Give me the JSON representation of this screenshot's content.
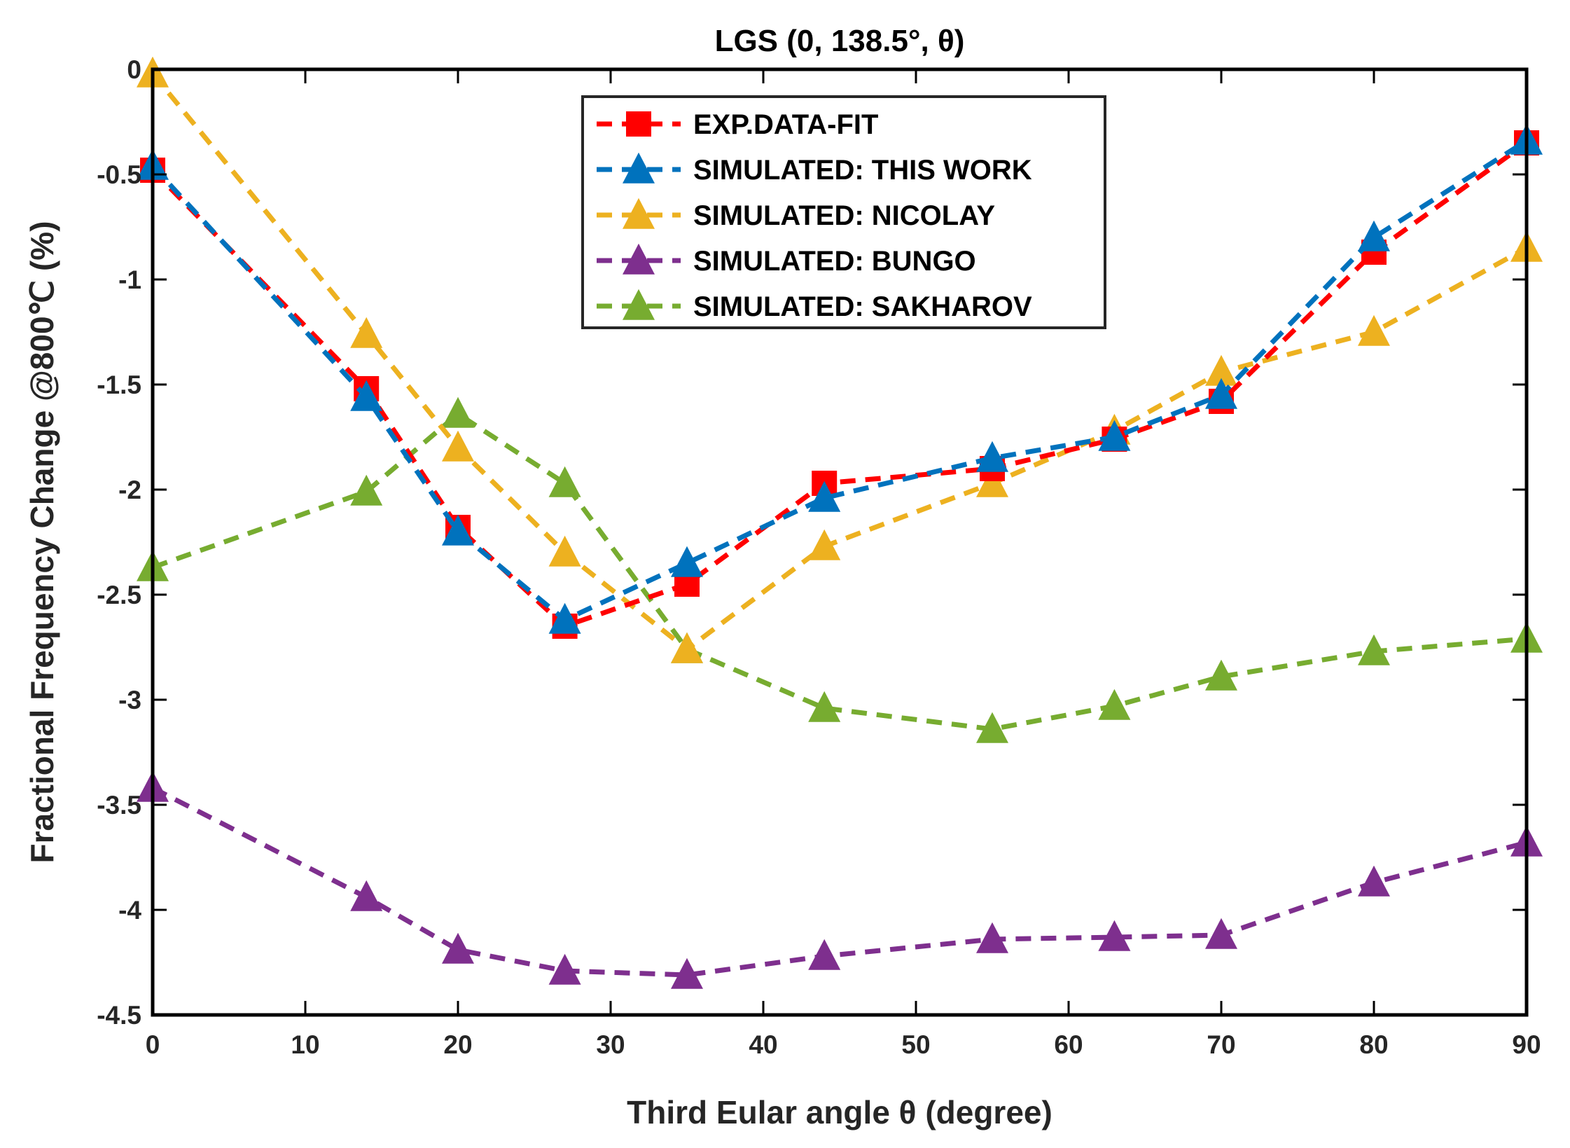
{
  "chart_data": {
    "type": "line",
    "title": "LGS (0, 138.5°, θ)",
    "xlabel": "Third Eular angle θ (degree)",
    "ylabel": "Fractional Frequency Change @800℃ (%)",
    "xlim": [
      0,
      90
    ],
    "ylim": [
      -4.5,
      0
    ],
    "xticks": [
      0,
      10,
      20,
      30,
      40,
      50,
      60,
      70,
      80,
      90
    ],
    "xtick_labels": [
      "0",
      "10",
      "20",
      "30",
      "40",
      "50",
      "60",
      "70",
      "80",
      "90"
    ],
    "yticks": [
      0,
      -0.5,
      -1,
      -1.5,
      -2,
      -2.5,
      -3,
      -3.5,
      -4,
      -4.5
    ],
    "ytick_labels": [
      "0",
      "-0.5",
      "-1",
      "-1.5",
      "-2",
      "-2.5",
      "-3",
      "-3.5",
      "-4",
      "-4.5"
    ],
    "grid": false,
    "legend_position": "top-center",
    "x": [
      0,
      14,
      20,
      27,
      35,
      44,
      55,
      63,
      70,
      80,
      90
    ],
    "series": [
      {
        "name": "EXP.DATA-FIT",
        "marker": "square",
        "color": "#ff0000",
        "values": [
          -0.48,
          -1.52,
          -2.18,
          -2.65,
          -2.45,
          -1.97,
          -1.9,
          -1.76,
          -1.58,
          -0.87,
          -0.35
        ]
      },
      {
        "name": "SIMULATED: THIS WORK",
        "marker": "triangle",
        "color": "#0072bd",
        "values": [
          -0.46,
          -1.56,
          -2.2,
          -2.62,
          -2.35,
          -2.04,
          -1.85,
          -1.75,
          -1.55,
          -0.8,
          -0.34
        ]
      },
      {
        "name": "SIMULATED: NICOLAY",
        "marker": "triangle",
        "color": "#edb120",
        "values": [
          -0.02,
          -1.26,
          -1.8,
          -2.3,
          -2.76,
          -2.27,
          -1.97,
          -1.72,
          -1.44,
          -1.25,
          -0.85
        ]
      },
      {
        "name": "SIMULATED: BUNGO",
        "marker": "triangle",
        "color": "#7e2f8e",
        "values": [
          -3.42,
          -3.94,
          -4.19,
          -4.29,
          -4.31,
          -4.22,
          -4.14,
          -4.13,
          -4.12,
          -3.87,
          -3.68
        ]
      },
      {
        "name": "SIMULATED: SAKHAROV",
        "marker": "triangle",
        "color": "#77ac30",
        "values": [
          -2.37,
          -2.01,
          -1.64,
          -1.97,
          -2.76,
          -3.04,
          -3.14,
          -3.03,
          -2.89,
          -2.77,
          -2.71
        ]
      }
    ]
  }
}
